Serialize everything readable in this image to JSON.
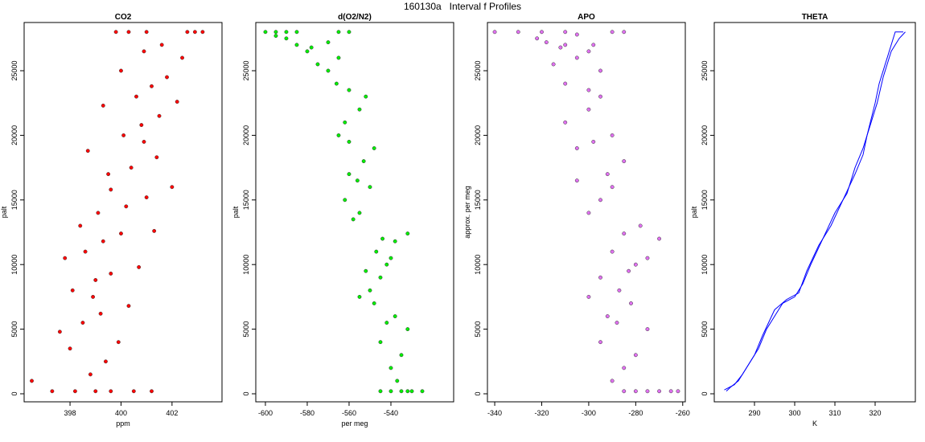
{
  "title": "160130a   Interval f Profiles",
  "chart_data": [
    {
      "type": "scatter",
      "title": "CO2",
      "xlabel": "ppm",
      "ylabel": "palt",
      "xlim": [
        396.2,
        403.96
      ],
      "ylim": [
        -622,
        28731
      ],
      "xticks": [
        398,
        400,
        402
      ],
      "yticks": [
        0,
        5000,
        10000,
        15000,
        20000,
        25000
      ],
      "series": [
        {
          "color": "#ff0000",
          "x": [
            397.3,
            398.2,
            399.0,
            399.6,
            400.5,
            401.2,
            396.5,
            398.8,
            399.4,
            398.0,
            399.9,
            397.6,
            398.5,
            399.2,
            400.3,
            398.9,
            398.1,
            399.0,
            399.6,
            400.7,
            397.8,
            398.6,
            399.3,
            400.0,
            401.3,
            398.4,
            399.1,
            400.2,
            401.0,
            399.6,
            402.0,
            399.5,
            400.4,
            401.4,
            398.7,
            400.9,
            400.1,
            400.8,
            401.5,
            399.3,
            402.2,
            400.6,
            401.2,
            401.8,
            400.0,
            402.4,
            400.9,
            401.6,
            402.6,
            399.8,
            403.2,
            400.3,
            401.0,
            402.9
          ],
          "values": [
            200,
            200,
            200,
            200,
            200,
            200,
            1000,
            1500,
            2500,
            3500,
            4000,
            4800,
            5500,
            6200,
            6800,
            7500,
            8000,
            8800,
            9300,
            9800,
            10500,
            11000,
            11800,
            12400,
            12600,
            13000,
            14000,
            14500,
            15200,
            15800,
            16000,
            17000,
            17500,
            18300,
            18800,
            19500,
            20000,
            20800,
            21500,
            22300,
            22600,
            23000,
            23800,
            24500,
            25000,
            26000,
            26500,
            27000,
            28000,
            28000,
            28000,
            28000,
            28000,
            28000
          ]
        }
      ]
    },
    {
      "type": "scatter",
      "title": "d(O2/N2)",
      "xlabel": "per meg",
      "ylabel": "palt",
      "xlim": [
        -604.6,
        -510
      ],
      "ylim": [
        -622,
        28731
      ],
      "xticks": [
        -600,
        -580,
        -560,
        -540
      ],
      "yticks": [
        0,
        5000,
        10000,
        15000,
        20000,
        25000
      ],
      "series": [
        {
          "color": "#00ee00",
          "x": [
            -530,
            -535,
            -540,
            -545,
            -525,
            -532,
            -537,
            -540,
            -535,
            -545,
            -532,
            -542,
            -538,
            -548,
            -555,
            -550,
            -545,
            -552,
            -542,
            -540,
            -547,
            -538,
            -532,
            -544,
            -558,
            -555,
            -562,
            -550,
            -556,
            -560,
            -553,
            -548,
            -560,
            -565,
            -562,
            -555,
            -552,
            -560,
            -566,
            -570,
            -575,
            -565,
            -580,
            -585,
            -590,
            -578,
            -570,
            -595,
            -600,
            -595,
            -590,
            -585,
            -565,
            -560
          ],
          "values": [
            200,
            200,
            200,
            200,
            200,
            200,
            1000,
            2000,
            3000,
            4000,
            5000,
            5500,
            6000,
            7000,
            7500,
            8000,
            9000,
            9500,
            10000,
            10500,
            11000,
            11800,
            12400,
            12000,
            13500,
            14000,
            15000,
            16000,
            16500,
            17000,
            18000,
            19000,
            19500,
            20000,
            21000,
            22000,
            23000,
            23500,
            24000,
            25000,
            25500,
            26000,
            26500,
            27000,
            27500,
            26800,
            27200,
            27700,
            28000,
            28000,
            28000,
            28000,
            28000,
            28000
          ]
        }
      ]
    },
    {
      "type": "scatter",
      "title": "APO",
      "ylabel": "approx. per meg",
      "xlim": [
        -343.1,
        -258.9
      ],
      "ylim": [
        -622,
        28731
      ],
      "xticks": [
        -340,
        -320,
        -300,
        -280,
        -260
      ],
      "yticks": [
        0,
        5000,
        10000,
        15000,
        20000,
        25000
      ],
      "series": [
        {
          "color": "#e070f0",
          "x": [
            -285,
            -280,
            -275,
            -270,
            -265,
            -262,
            -290,
            -285,
            -280,
            -295,
            -275,
            -288,
            -292,
            -282,
            -300,
            -287,
            -295,
            -283,
            -280,
            -275,
            -290,
            -270,
            -285,
            -278,
            -300,
            -295,
            -290,
            -305,
            -292,
            -285,
            -305,
            -298,
            -290,
            -310,
            -300,
            -295,
            -300,
            -310,
            -295,
            -315,
            -305,
            -300,
            -310,
            -318,
            -322,
            -305,
            -298,
            -312,
            -340,
            -330,
            -320,
            -310,
            -290,
            -285
          ],
          "values": [
            200,
            200,
            200,
            200,
            200,
            200,
            1000,
            2000,
            3000,
            4000,
            5000,
            5500,
            6000,
            7000,
            7500,
            8000,
            9000,
            9500,
            10000,
            10500,
            11000,
            12000,
            12400,
            13000,
            14000,
            15000,
            16000,
            16500,
            17000,
            18000,
            19000,
            19500,
            20000,
            21000,
            22000,
            23000,
            23500,
            24000,
            25000,
            25500,
            26000,
            26500,
            27000,
            27200,
            27500,
            27800,
            27000,
            26800,
            28000,
            28000,
            28000,
            28000,
            28000,
            28000
          ]
        }
      ]
    },
    {
      "type": "line",
      "title": "THETA",
      "xlabel": "K",
      "ylabel": "palt",
      "xlim": [
        280,
        330
      ],
      "ylim": [
        -622,
        28731
      ],
      "xticks": [
        290,
        300,
        310,
        320
      ],
      "yticks": [
        0,
        5000,
        10000,
        15000,
        20000,
        25000
      ],
      "series": [
        {
          "color": "#0000ff",
          "x": [
            283,
            284,
            286,
            288,
            290,
            292,
            295,
            298,
            301,
            303,
            306,
            309,
            312,
            315,
            317,
            318,
            320,
            321,
            323,
            325,
            327
          ],
          "values": [
            200,
            500,
            1000,
            2000,
            3000,
            4500,
            6500,
            7300,
            7800,
            9500,
            11500,
            13000,
            15000,
            17000,
            18500,
            20000,
            22500,
            24000,
            26000,
            28000,
            28000
          ]
        },
        {
          "color": "#0000ff",
          "x": [
            282.5,
            285,
            287,
            289,
            291,
            293,
            297,
            300,
            302,
            304,
            307,
            310,
            313,
            315,
            317,
            319,
            320.5,
            322,
            324,
            326,
            327.5
          ],
          "values": [
            300,
            700,
            1500,
            2500,
            3500,
            5000,
            7000,
            7500,
            8500,
            10000,
            12000,
            14000,
            15500,
            17500,
            19000,
            21000,
            22500,
            24500,
            26500,
            27500,
            28000
          ]
        }
      ]
    }
  ]
}
